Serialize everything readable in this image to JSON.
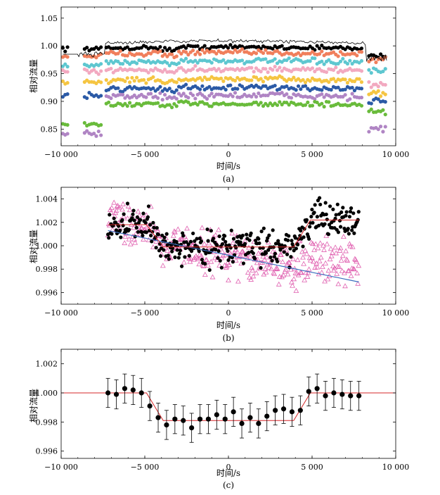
{
  "figure": {
    "x_ticks": [
      -10000,
      -5000,
      0,
      5000,
      10000
    ],
    "x_tick_labels": [
      "−10 000",
      "−5 000",
      "0",
      "5 000",
      "10 000"
    ]
  },
  "chart_data": [
    {
      "type": "scatter",
      "panel": "(a)",
      "xlabel": "时间/s",
      "ylabel": "相对流量",
      "xlim": [
        -10000,
        10000
      ],
      "ylim": [
        0.82,
        1.07
      ],
      "y_ticks": [
        0.85,
        0.9,
        0.95,
        1.0,
        1.05
      ],
      "y_tick_labels": [
        "0.85",
        "0.90",
        "0.95",
        "1.00",
        "1.05"
      ],
      "series": [
        {
          "name": "black",
          "color": "#000000",
          "base": 0.995,
          "early": 0.995,
          "ends": 0.982,
          "amp": 0.003
        },
        {
          "name": "orange",
          "color": "#f07f5c",
          "base": 0.985,
          "early": 0.982,
          "ends": 0.975,
          "amp": 0.004
        },
        {
          "name": "cyan",
          "color": "#5ec7d0",
          "base": 0.97,
          "early": 0.965,
          "ends": 0.955,
          "amp": 0.004
        },
        {
          "name": "pink",
          "color": "#f2a9c0",
          "base": 0.955,
          "early": 0.953,
          "ends": 0.93,
          "amp": 0.004
        },
        {
          "name": "yellow",
          "color": "#f5c542",
          "base": 0.937,
          "early": 0.935,
          "ends": 0.915,
          "amp": 0.004
        },
        {
          "name": "blue",
          "color": "#2b5aa6",
          "base": 0.922,
          "early": 0.91,
          "ends": 0.9,
          "amp": 0.004
        },
        {
          "name": "violet",
          "color": "#b085c4",
          "base": 0.908,
          "early": 0.843,
          "ends": 0.85,
          "amp": 0.005
        },
        {
          "name": "green",
          "color": "#69bb3b",
          "base": 0.893,
          "early": 0.858,
          "ends": 0.88,
          "amp": 0.004
        }
      ],
      "model_line": {
        "color": "#000000",
        "base": 1.003
      }
    },
    {
      "type": "scatter",
      "panel": "(b)",
      "xlabel": "时间/s",
      "ylabel": "相对流量",
      "xlim": [
        -10000,
        10000
      ],
      "ylim": [
        0.995,
        1.005
      ],
      "y_ticks": [
        0.996,
        0.998,
        1.0,
        1.002,
        1.004
      ],
      "y_tick_labels": [
        "0.996",
        "0.998",
        "1.000",
        "1.002",
        "1.004"
      ],
      "x_range": [
        -7200,
        7800
      ],
      "series": [
        {
          "name": "detrended (filled circles)",
          "color": "#000000"
        },
        {
          "name": "raw (open triangles)",
          "color": "#e060b0"
        }
      ],
      "fit_line": {
        "color": "#d62728"
      },
      "trend_line": {
        "color": "#3b6fbf",
        "start": 1.0013,
        "end": 0.9969
      }
    },
    {
      "type": "scatter",
      "panel": "(c)",
      "xlabel": "时间/s",
      "ylabel": "相对流量",
      "xlim": [
        -10000,
        10000
      ],
      "ylim": [
        0.9955,
        1.003
      ],
      "y_ticks": [
        0.996,
        0.998,
        1.0,
        1.002
      ],
      "y_tick_labels": [
        "0.996",
        "0.998",
        "1.000",
        "1.002"
      ],
      "error": 0.001,
      "x": [
        -7200,
        -6700,
        -6200,
        -5700,
        -5200,
        -4700,
        -4200,
        -3700,
        -3200,
        -2700,
        -2200,
        -1700,
        -1200,
        -700,
        -200,
        300,
        800,
        1300,
        1800,
        2300,
        2800,
        3300,
        3800,
        4300,
        4800,
        5300,
        5800,
        6300,
        6800,
        7300,
        7800
      ],
      "y": [
        1.0,
        0.9999,
        1.0003,
        1.0002,
        1.0,
        0.9991,
        0.9983,
        0.9978,
        0.9982,
        0.9981,
        0.9976,
        0.9982,
        0.9982,
        0.9985,
        0.9982,
        0.9987,
        0.9979,
        0.9983,
        0.9979,
        0.9984,
        0.9988,
        0.9989,
        0.9987,
        0.9988,
        1.0001,
        1.0003,
        0.9998,
        1.0,
        0.9999,
        0.9998,
        0.9998
      ],
      "model_line": {
        "color": "#d62728",
        "x": [
          -10000,
          -4900,
          -3900,
          3900,
          4900,
          10000
        ],
        "y": [
          1.0,
          1.0,
          0.9981,
          0.9981,
          1.0,
          1.0
        ]
      }
    }
  ]
}
